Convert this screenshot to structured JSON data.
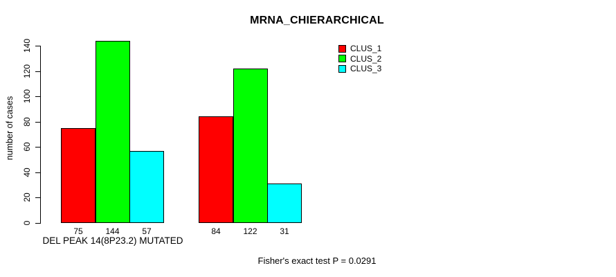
{
  "chart_data": {
    "type": "bar",
    "title": "MRNA_CHIERARCHICAL",
    "xlabel": "",
    "ylabel": "number of cases",
    "ylim": [
      0,
      140
    ],
    "yticks": [
      0,
      20,
      40,
      60,
      80,
      100,
      120,
      140
    ],
    "grid": false,
    "background_color": "#ffffff",
    "legend_position": "top-right",
    "series": [
      {
        "name": "CLUS_1",
        "color": "#ff0000"
      },
      {
        "name": "CLUS_2",
        "color": "#00ff00"
      },
      {
        "name": "CLUS_3",
        "color": "#00ffff"
      }
    ],
    "groups": [
      {
        "label": "DEL PEAK 14(8P23.2) MUTATED",
        "values": [
          75,
          144,
          57
        ],
        "bar_labels": [
          "75",
          "144",
          "57"
        ]
      },
      {
        "label": "",
        "values": [
          84,
          122,
          31
        ],
        "bar_labels": [
          "84",
          "122",
          "31"
        ]
      }
    ],
    "annotation": "Fisher's exact test P = 0.0291"
  }
}
